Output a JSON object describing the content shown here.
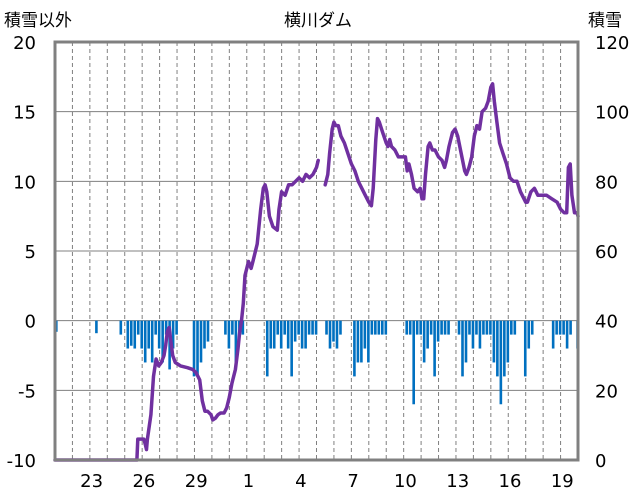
{
  "chart_data": {
    "type": "bar+line",
    "title": "横川ダム",
    "ylabel_left": "積雪以外",
    "ylabel_right": "積雪",
    "left_axis": {
      "ylim": [
        -10,
        20
      ],
      "ticks": [
        "-10",
        "-5",
        "0",
        "5",
        "10",
        "15",
        "20"
      ]
    },
    "right_axis": {
      "ylim": [
        0,
        120
      ],
      "ticks": [
        "0",
        "20",
        "40",
        "60",
        "80",
        "100",
        "120"
      ]
    },
    "x_tick_labels": [
      "23",
      "26",
      "29",
      "1",
      "4",
      "7",
      "10",
      "13",
      "16",
      "19"
    ],
    "x_tick_days": [
      2,
      5,
      8,
      11,
      14,
      17,
      20,
      23,
      26,
      29
    ],
    "x_day_range": [
      0,
      30
    ],
    "grid": true,
    "colors": {
      "line": "#7030A0",
      "bar": "#0070C0",
      "frame": "#808080",
      "grid": "#808080"
    },
    "series": [
      {
        "axis": "right",
        "style": "line",
        "points": [
          [
            0.0,
            0
          ],
          [
            4.7,
            0
          ],
          [
            4.75,
            6
          ],
          [
            5.1,
            6
          ],
          [
            5.2,
            4
          ],
          [
            5.25,
            3
          ],
          [
            5.3,
            6
          ],
          [
            5.5,
            13
          ],
          [
            5.65,
            24
          ],
          [
            5.8,
            29
          ],
          [
            5.95,
            27
          ],
          [
            6.1,
            28
          ],
          [
            6.25,
            30
          ],
          [
            6.35,
            33
          ],
          [
            6.45,
            37
          ],
          [
            6.55,
            38
          ],
          [
            6.65,
            34
          ],
          [
            6.75,
            30
          ],
          [
            6.9,
            28
          ],
          [
            7.2,
            27
          ],
          [
            7.6,
            26.5
          ],
          [
            7.9,
            26
          ],
          [
            8.1,
            25
          ],
          [
            8.3,
            23
          ],
          [
            8.45,
            17
          ],
          [
            8.6,
            14
          ],
          [
            8.75,
            14
          ],
          [
            8.95,
            13
          ],
          [
            9.05,
            11.5
          ],
          [
            9.2,
            12
          ],
          [
            9.35,
            13
          ],
          [
            9.5,
            13.5
          ],
          [
            9.7,
            13.5
          ],
          [
            9.85,
            15
          ],
          [
            10.0,
            18
          ],
          [
            10.15,
            22
          ],
          [
            10.35,
            26
          ],
          [
            10.5,
            32
          ],
          [
            10.6,
            37
          ],
          [
            10.7,
            40
          ],
          [
            10.8,
            45
          ],
          [
            10.9,
            53
          ],
          [
            11.1,
            57
          ],
          [
            11.25,
            55
          ],
          [
            11.35,
            57
          ],
          [
            11.6,
            62
          ],
          [
            11.8,
            72
          ],
          [
            11.95,
            78
          ],
          [
            12.05,
            79
          ],
          [
            12.15,
            77
          ],
          [
            12.3,
            70
          ],
          [
            12.5,
            67
          ],
          [
            12.75,
            66
          ],
          [
            12.85,
            72
          ],
          [
            13.0,
            77
          ],
          [
            13.2,
            76
          ],
          [
            13.4,
            79
          ],
          [
            13.6,
            79
          ],
          [
            13.8,
            80
          ],
          [
            14.0,
            81
          ],
          [
            14.2,
            80
          ],
          [
            14.4,
            82
          ],
          [
            14.6,
            81
          ],
          [
            14.8,
            82
          ],
          [
            15.0,
            84
          ],
          [
            15.1,
            86
          ]
        ]
      },
      {
        "axis": "right",
        "style": "line",
        "points": [
          [
            15.5,
            79
          ],
          [
            15.65,
            82
          ],
          [
            15.75,
            88
          ],
          [
            15.9,
            95
          ],
          [
            16.0,
            97
          ],
          [
            16.1,
            96
          ],
          [
            16.25,
            96
          ],
          [
            16.4,
            93
          ],
          [
            16.6,
            91
          ],
          [
            16.8,
            88
          ],
          [
            17.0,
            85
          ],
          [
            17.2,
            83
          ],
          [
            17.4,
            80
          ],
          [
            17.6,
            78
          ],
          [
            17.8,
            76
          ],
          [
            18.0,
            74
          ],
          [
            18.15,
            73
          ],
          [
            18.25,
            78
          ],
          [
            18.4,
            92
          ],
          [
            18.5,
            98
          ],
          [
            18.6,
            97
          ],
          [
            18.8,
            94
          ],
          [
            19.0,
            91
          ],
          [
            19.1,
            90
          ],
          [
            19.2,
            92
          ],
          [
            19.3,
            90
          ],
          [
            19.5,
            89
          ],
          [
            19.7,
            87
          ],
          [
            19.9,
            87
          ],
          [
            20.1,
            87
          ],
          [
            20.2,
            83
          ],
          [
            20.3,
            85
          ],
          [
            20.45,
            82
          ],
          [
            20.6,
            78
          ],
          [
            20.8,
            77
          ],
          [
            20.95,
            78
          ],
          [
            21.05,
            75
          ],
          [
            21.15,
            75
          ],
          [
            21.25,
            82
          ],
          [
            21.4,
            90
          ],
          [
            21.5,
            91
          ],
          [
            21.65,
            89
          ],
          [
            21.8,
            89
          ],
          [
            22.0,
            87
          ],
          [
            22.2,
            86
          ],
          [
            22.35,
            84
          ],
          [
            22.45,
            86
          ],
          [
            22.6,
            90
          ],
          [
            22.8,
            94
          ],
          [
            22.95,
            95
          ],
          [
            23.1,
            93
          ],
          [
            23.3,
            88
          ],
          [
            23.5,
            83
          ],
          [
            23.6,
            82
          ],
          [
            23.75,
            84
          ],
          [
            23.9,
            87
          ],
          [
            24.05,
            93
          ],
          [
            24.2,
            96
          ],
          [
            24.35,
            95
          ],
          [
            24.5,
            100
          ],
          [
            24.7,
            101
          ],
          [
            24.85,
            103
          ],
          [
            25.0,
            107
          ],
          [
            25.1,
            108
          ],
          [
            25.2,
            103
          ],
          [
            25.35,
            97
          ],
          [
            25.5,
            91
          ],
          [
            25.7,
            88
          ],
          [
            25.9,
            85
          ],
          [
            26.1,
            81
          ],
          [
            26.3,
            80
          ],
          [
            26.5,
            80
          ],
          [
            26.7,
            77
          ],
          [
            26.9,
            75
          ],
          [
            27.0,
            74
          ],
          [
            27.1,
            74
          ],
          [
            27.3,
            77
          ],
          [
            27.5,
            78
          ],
          [
            27.7,
            76
          ],
          [
            27.9,
            76
          ],
          [
            28.2,
            76
          ],
          [
            28.5,
            75
          ],
          [
            28.8,
            74
          ],
          [
            29.0,
            72
          ],
          [
            29.2,
            71
          ],
          [
            29.35,
            71
          ],
          [
            29.45,
            84
          ],
          [
            29.55,
            85
          ],
          [
            29.65,
            76
          ],
          [
            29.8,
            71
          ],
          [
            29.95,
            71
          ],
          [
            30.0,
            70
          ]
        ]
      },
      {
        "axis": "left",
        "style": "bar",
        "name": "積雪以外",
        "bars": [
          [
            0.0,
            -0.8
          ],
          [
            2.3,
            -0.9
          ],
          [
            3.7,
            -1.0
          ],
          [
            4.1,
            -2.0
          ],
          [
            4.3,
            -1.8
          ],
          [
            4.5,
            -2.0
          ],
          [
            4.7,
            -1.0
          ],
          [
            4.9,
            -2.0
          ],
          [
            5.1,
            -3.0
          ],
          [
            5.3,
            -2.0
          ],
          [
            5.5,
            -3.0
          ],
          [
            5.7,
            -1.0
          ],
          [
            5.9,
            -2.0
          ],
          [
            6.1,
            -3.0
          ],
          [
            6.3,
            -1.0
          ],
          [
            6.5,
            -3.5
          ],
          [
            6.7,
            -2.0
          ],
          [
            6.9,
            -1.0
          ],
          [
            7.9,
            -4.0
          ],
          [
            8.1,
            -4.0
          ],
          [
            8.3,
            -3.0
          ],
          [
            8.5,
            -2.0
          ],
          [
            8.7,
            -1.5
          ],
          [
            9.7,
            -1.0
          ],
          [
            9.9,
            -2.0
          ],
          [
            10.1,
            -1.0
          ],
          [
            10.3,
            -3.0
          ],
          [
            10.5,
            -1.0
          ],
          [
            10.7,
            -1.0
          ],
          [
            12.1,
            -4.0
          ],
          [
            12.3,
            -2.0
          ],
          [
            12.5,
            -2.0
          ],
          [
            12.7,
            -1.0
          ],
          [
            12.9,
            -2.0
          ],
          [
            13.1,
            -1.0
          ],
          [
            13.3,
            -2.0
          ],
          [
            13.5,
            -4.0
          ],
          [
            13.7,
            -1.5
          ],
          [
            13.9,
            -1.0
          ],
          [
            14.1,
            -2.0
          ],
          [
            14.3,
            -2.0
          ],
          [
            14.5,
            -1.0
          ],
          [
            14.7,
            -1.0
          ],
          [
            14.9,
            -1.0
          ],
          [
            15.5,
            -1.0
          ],
          [
            15.7,
            -2.0
          ],
          [
            15.9,
            -1.5
          ],
          [
            16.1,
            -2.0
          ],
          [
            16.3,
            -1.0
          ],
          [
            17.1,
            -4.0
          ],
          [
            17.3,
            -3.0
          ],
          [
            17.5,
            -3.0
          ],
          [
            17.7,
            -2.0
          ],
          [
            17.9,
            -3.0
          ],
          [
            18.1,
            -1.0
          ],
          [
            18.3,
            -1.0
          ],
          [
            18.5,
            -1.0
          ],
          [
            18.7,
            -1.0
          ],
          [
            18.9,
            -1.0
          ],
          [
            20.1,
            -1.0
          ],
          [
            20.3,
            -1.0
          ],
          [
            20.5,
            -6.0
          ],
          [
            20.7,
            -1.0
          ],
          [
            20.9,
            -1.0
          ],
          [
            21.1,
            -3.0
          ],
          [
            21.3,
            -2.0
          ],
          [
            21.5,
            -1.0
          ],
          [
            21.7,
            -4.0
          ],
          [
            21.9,
            -1.5
          ],
          [
            22.1,
            -1.0
          ],
          [
            22.3,
            -1.0
          ],
          [
            22.5,
            -1.0
          ],
          [
            23.1,
            -1.0
          ],
          [
            23.3,
            -4.0
          ],
          [
            23.5,
            -3.0
          ],
          [
            23.7,
            -1.0
          ],
          [
            23.9,
            -2.0
          ],
          [
            24.1,
            -1.0
          ],
          [
            24.3,
            -2.0
          ],
          [
            24.5,
            -1.0
          ],
          [
            24.7,
            -1.0
          ],
          [
            24.9,
            -1.0
          ],
          [
            25.1,
            -3.0
          ],
          [
            25.3,
            -4.0
          ],
          [
            25.5,
            -6.0
          ],
          [
            25.7,
            -4.0
          ],
          [
            25.9,
            -3.0
          ],
          [
            26.1,
            -1.0
          ],
          [
            26.3,
            -1.0
          ],
          [
            26.9,
            -4.0
          ],
          [
            27.1,
            -2.0
          ],
          [
            27.3,
            -1.0
          ],
          [
            28.5,
            -2.0
          ],
          [
            28.7,
            -1.0
          ],
          [
            28.9,
            -1.0
          ],
          [
            29.1,
            -1.0
          ],
          [
            29.3,
            -2.0
          ],
          [
            29.5,
            -1.0
          ],
          [
            29.9,
            -2.0
          ]
        ]
      }
    ]
  }
}
